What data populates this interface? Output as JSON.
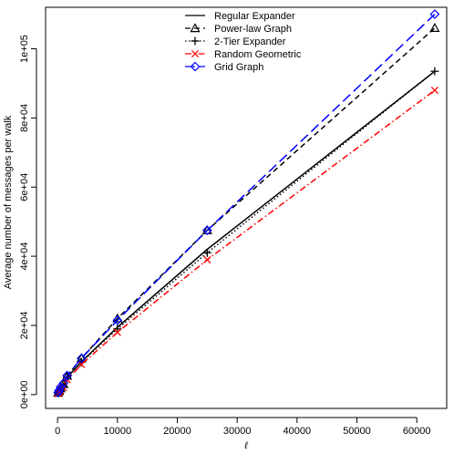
{
  "chart_data": {
    "type": "line",
    "title": "",
    "xlabel": "ℓ",
    "ylabel": "Average number of messages per walk",
    "xlim": [
      -2000,
      65000
    ],
    "ylim": [
      -4000,
      112000
    ],
    "xticks": [
      0,
      10000,
      20000,
      30000,
      40000,
      50000,
      60000
    ],
    "xtick_labels": [
      "0",
      "10000",
      "20000",
      "30000",
      "40000",
      "50000",
      "60000"
    ],
    "yticks": [
      0,
      20000,
      40000,
      60000,
      80000,
      100000
    ],
    "ytick_labels": [
      "0e+00",
      "2e+04",
      "4e+04",
      "6e+04",
      "8e+04",
      "1e+05"
    ],
    "grid": false,
    "legend_position": "top-center",
    "series": [
      {
        "name": "Regular Expander",
        "color": "#000000",
        "line_style": "solid",
        "marker": "none",
        "x": [
          100,
          250,
          500,
          1000,
          1600,
          4000,
          10000,
          25000,
          63000
        ],
        "y": [
          300,
          600,
          1000,
          2000,
          5000,
          9500,
          19500,
          42000,
          93500
        ]
      },
      {
        "name": "Power-law Graph",
        "color": "#000000",
        "line_style": "dashed",
        "marker": "triangle",
        "x": [
          100,
          250,
          500,
          1000,
          1600,
          4000,
          10000,
          25000,
          63000
        ],
        "y": [
          500,
          1000,
          1800,
          3000,
          5400,
          10500,
          22000,
          47500,
          106000
        ]
      },
      {
        "name": "2-Tier Expander",
        "color": "#000000",
        "line_style": "dotted",
        "marker": "plus",
        "x": [
          100,
          250,
          500,
          1000,
          1600,
          4000,
          10000,
          25000,
          63000
        ],
        "y": [
          400,
          800,
          1400,
          2300,
          5000,
          9400,
          19000,
          41000,
          93500
        ]
      },
      {
        "name": "Random Geometric",
        "color": "#ff0000",
        "line_style": "dashdot",
        "marker": "x",
        "x": [
          100,
          250,
          500,
          1000,
          1600,
          4000,
          10000,
          25000,
          63000
        ],
        "y": [
          300,
          700,
          1200,
          2000,
          4300,
          8700,
          18000,
          39000,
          88000
        ]
      },
      {
        "name": "Grid Graph",
        "color": "#0000ff",
        "line_style": "longdash",
        "marker": "diamond",
        "x": [
          100,
          250,
          500,
          1000,
          1600,
          4000,
          10000,
          25000,
          63000
        ],
        "y": [
          600,
          1200,
          2200,
          3300,
          5500,
          10500,
          21500,
          47500,
          110000
        ]
      }
    ]
  }
}
